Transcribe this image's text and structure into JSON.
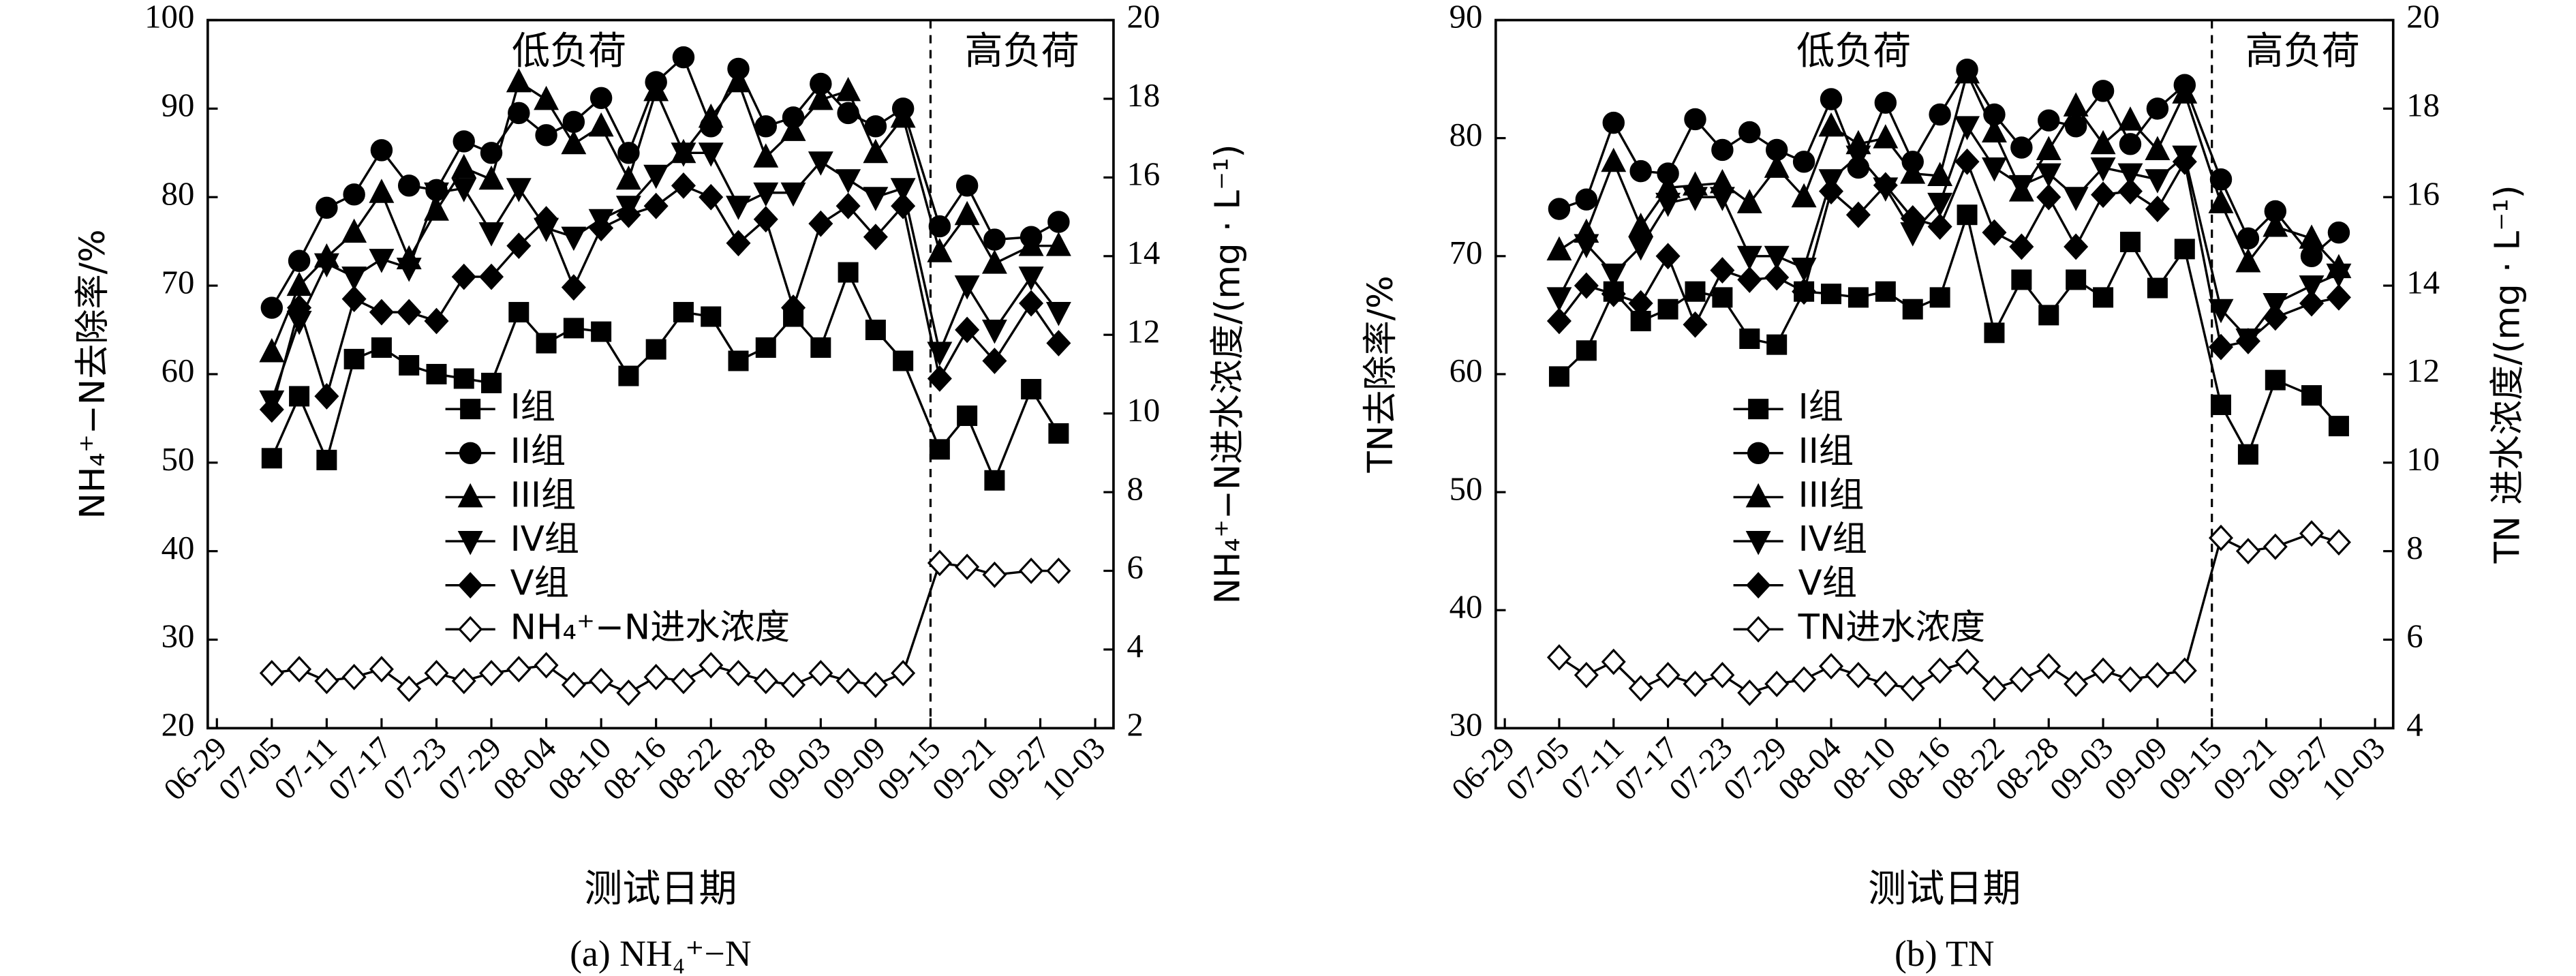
{
  "chart_data": [
    {
      "type": "line",
      "caption": "(a) NH₄⁺−N",
      "x_label": "测试日期",
      "y_label": "NH₄⁺−N去除率/%",
      "y2_label": "NH₄⁺−N进水浓度/(mg · L⁻¹)",
      "annotations": [
        "低负荷",
        "高负荷"
      ],
      "divider": "09-15",
      "x": [
        "07-05",
        "07-08",
        "07-11",
        "07-14",
        "07-17",
        "07-20",
        "07-23",
        "07-26",
        "07-29",
        "08-01",
        "08-04",
        "08-07",
        "08-10",
        "08-13",
        "08-16",
        "08-19",
        "08-22",
        "08-25",
        "08-28",
        "08-31",
        "09-03",
        "09-06",
        "09-09",
        "09-12",
        "09-16",
        "09-19",
        "09-22",
        "09-26",
        "09-29"
      ],
      "xlim": [
        "06-28",
        "10-05"
      ],
      "xticks": [
        "06-29",
        "07-05",
        "07-11",
        "07-17",
        "07-23",
        "07-29",
        "08-04",
        "08-10",
        "08-16",
        "08-22",
        "08-28",
        "09-03",
        "09-09",
        "09-15",
        "09-21",
        "09-27",
        "10-03"
      ],
      "ylim": [
        20,
        100
      ],
      "yticks": [
        20,
        30,
        40,
        50,
        60,
        70,
        80,
        90,
        100
      ],
      "y2lim": [
        2,
        20
      ],
      "y2ticks": [
        2,
        4,
        6,
        8,
        10,
        12,
        14,
        16,
        18,
        20
      ],
      "series": [
        {
          "name": "I组",
          "color": "#000000",
          "marker": "square",
          "values": [
            50.5,
            57.5,
            50.3,
            61.7,
            63,
            61,
            60,
            59.5,
            59,
            67,
            63.5,
            65.2,
            64.8,
            59.8,
            62.8,
            67,
            66.5,
            61.5,
            63,
            66.5,
            63,
            71.5,
            65,
            61.5,
            51.5,
            55.3,
            48,
            58.3,
            53.3
          ]
        },
        {
          "name": "II组",
          "color": "#000000",
          "marker": "circle",
          "values": [
            67.5,
            72.8,
            78.8,
            80.3,
            85.3,
            81.3,
            80.8,
            86.3,
            85,
            89.5,
            87,
            88.5,
            91.2,
            85,
            93,
            95.8,
            88,
            94.5,
            88,
            89,
            92.8,
            89.5,
            88,
            90,
            76.7,
            81.3,
            75.2,
            75.5,
            77.2
          ]
        },
        {
          "name": "III组",
          "color": "#000000",
          "marker": "triangle-up",
          "values": [
            62.5,
            70,
            73.2,
            76,
            80.5,
            73,
            78.5,
            83.3,
            82,
            93,
            91,
            86,
            88,
            82,
            92,
            85,
            89,
            93,
            84.5,
            87.5,
            91,
            92,
            85,
            89,
            73.8,
            78,
            72.5,
            74.5,
            74.5
          ]
        },
        {
          "name": "IV组",
          "color": "#000000",
          "marker": "triangle-down",
          "values": [
            57,
            66,
            72.5,
            71,
            73,
            72,
            80.5,
            81,
            76,
            81,
            76.5,
            75.5,
            77.5,
            79,
            82.5,
            85,
            85,
            79,
            80.5,
            80.5,
            84,
            82,
            80,
            81,
            62.5,
            70,
            65,
            71,
            67
          ]
        },
        {
          "name": "V组",
          "color": "#000000",
          "marker": "diamond",
          "values": [
            56,
            67.5,
            57.5,
            68.5,
            67,
            67,
            66,
            71,
            71,
            74.5,
            77.5,
            69.8,
            76.5,
            78,
            79,
            81.3,
            80,
            74.8,
            77.5,
            67.5,
            77,
            79,
            75.5,
            79,
            59.5,
            65,
            61.5,
            68,
            63.5
          ]
        },
        {
          "name": "NH₄⁺−N进水浓度",
          "color": "#000000",
          "marker": "diamond-open",
          "axis": "y2",
          "values": [
            3.4,
            3.5,
            3.2,
            3.3,
            3.5,
            3.0,
            3.4,
            3.2,
            3.4,
            3.5,
            3.6,
            3.1,
            3.2,
            2.9,
            3.3,
            3.2,
            3.6,
            3.4,
            3.2,
            3.1,
            3.4,
            3.2,
            3.1,
            3.4,
            6.2,
            6.1,
            5.9,
            6.0,
            6.0
          ]
        }
      ]
    },
    {
      "type": "line",
      "caption": "(b) TN",
      "x_label": "测试日期",
      "y_label": "TN去除率/%",
      "y2_label": "TN 进水浓度/(mg · L⁻¹)",
      "annotations": [
        "低负荷",
        "高负荷"
      ],
      "divider": "09-15",
      "x": [
        "07-05",
        "07-08",
        "07-11",
        "07-14",
        "07-17",
        "07-20",
        "07-23",
        "07-26",
        "07-29",
        "08-01",
        "08-04",
        "08-07",
        "08-10",
        "08-13",
        "08-16",
        "08-19",
        "08-22",
        "08-25",
        "08-28",
        "08-31",
        "09-03",
        "09-06",
        "09-09",
        "09-12",
        "09-16",
        "09-19",
        "09-22",
        "09-26",
        "09-29"
      ],
      "xlim": [
        "06-28",
        "10-05"
      ],
      "xticks": [
        "06-29",
        "07-05",
        "07-11",
        "07-17",
        "07-23",
        "07-29",
        "08-04",
        "08-10",
        "08-16",
        "08-22",
        "08-28",
        "09-03",
        "09-09",
        "09-15",
        "09-21",
        "09-27",
        "10-03"
      ],
      "ylim": [
        30,
        90
      ],
      "yticks": [
        30,
        40,
        50,
        60,
        70,
        80,
        90
      ],
      "y2lim": [
        4,
        20
      ],
      "y2ticks": [
        4,
        6,
        8,
        10,
        12,
        14,
        16,
        18,
        20
      ],
      "series": [
        {
          "name": "I组",
          "color": "#000000",
          "marker": "square",
          "values": [
            59.8,
            62,
            67,
            64.5,
            65.5,
            67,
            66.5,
            63,
            62.5,
            67,
            66.8,
            66.5,
            67,
            65.5,
            66.5,
            73.5,
            63.5,
            68,
            65,
            68,
            66.5,
            71.2,
            67.3,
            70.6,
            57.4,
            53.2,
            59.5,
            58.2,
            55.6
          ]
        },
        {
          "name": "II组",
          "color": "#000000",
          "marker": "circle",
          "values": [
            74,
            74.8,
            81.3,
            77.2,
            77,
            81.6,
            79,
            80.5,
            79,
            78,
            83.3,
            77.5,
            83,
            78,
            82,
            85.8,
            82,
            79.2,
            81.5,
            81,
            84,
            79.5,
            82.5,
            84.5,
            76.5,
            71.5,
            73.8,
            70,
            72
          ]
        },
        {
          "name": "III组",
          "color": "#000000",
          "marker": "triangle-up",
          "values": [
            70.5,
            72,
            78,
            72.5,
            75.8,
            76,
            76.2,
            74.5,
            77.5,
            75,
            81,
            79.5,
            80,
            77,
            76.8,
            85.5,
            80.5,
            75.5,
            79,
            82.7,
            79.5,
            81.5,
            79,
            83.8,
            74.5,
            69.5,
            72.5,
            71.5,
            69
          ]
        },
        {
          "name": "IV组",
          "color": "#000000",
          "marker": "triangle-down",
          "values": [
            66.5,
            71,
            68.5,
            70.8,
            74.5,
            75,
            75,
            70,
            70,
            69,
            76.5,
            78.5,
            75.8,
            72,
            74.5,
            81,
            77.5,
            76,
            77,
            75,
            77.5,
            77,
            76.5,
            78.5,
            65.5,
            63,
            66,
            67.5,
            68.5
          ]
        },
        {
          "name": "V组",
          "color": "#000000",
          "marker": "diamond",
          "values": [
            64.5,
            67.5,
            66.8,
            66,
            70,
            64.2,
            68.8,
            68,
            68.2,
            67,
            75.5,
            73.5,
            76,
            73.2,
            72.5,
            78,
            72,
            70.8,
            75,
            70.8,
            75.2,
            75.5,
            74,
            78,
            62.3,
            62.8,
            64.8,
            66,
            66.5
          ]
        },
        {
          "name": "TN进水浓度",
          "color": "#000000",
          "marker": "diamond-open",
          "axis": "y2",
          "values": [
            5.6,
            5.2,
            5.5,
            4.9,
            5.2,
            5.0,
            5.2,
            4.8,
            5.0,
            5.1,
            5.4,
            5.2,
            5.0,
            4.9,
            5.3,
            5.5,
            4.9,
            5.1,
            5.4,
            5.0,
            5.3,
            5.1,
            5.2,
            5.3,
            8.3,
            8.0,
            8.1,
            8.4,
            8.2
          ]
        }
      ]
    }
  ]
}
